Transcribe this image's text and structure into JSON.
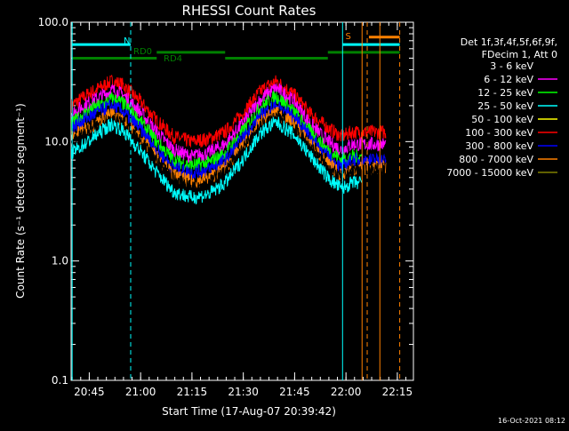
{
  "chart_data": {
    "type": "line",
    "title": "RHESSI Count Rates",
    "xlabel": "Start Time (17-Aug-07 20:39:42)",
    "ylabel": "Count Rate (s⁻¹ detector segment⁻¹)",
    "yscale": "log",
    "ylim": [
      0.1,
      100.0
    ],
    "xlim_minutes": [
      0,
      100
    ],
    "x_ticks": [
      {
        "label": "20:45",
        "t": 5.3
      },
      {
        "label": "21:00",
        "t": 20.3
      },
      {
        "label": "21:15",
        "t": 35.3
      },
      {
        "label": "21:30",
        "t": 50.3
      },
      {
        "label": "21:45",
        "t": 65.3
      },
      {
        "label": "22:00",
        "t": 80.3
      },
      {
        "label": "22:15",
        "t": 95.3
      }
    ],
    "y_ticks": [
      {
        "label": "0.1",
        "v": 0.1
      },
      {
        "label": "1.0",
        "v": 1.0
      },
      {
        "label": "10.0",
        "v": 10.0
      },
      {
        "label": "100.0",
        "v": 100.0
      }
    ],
    "legend": {
      "header": [
        "Det 1f,3f,4f,5f,6f,9f,",
        "FDecim 1, Att 0"
      ],
      "entries": [
        {
          "label": "3 - 6 keV",
          "color": "#000000"
        },
        {
          "label": "6 - 12 keV",
          "color": "#ff00ff"
        },
        {
          "label": "12 - 25 keV",
          "color": "#00ff00"
        },
        {
          "label": "25 - 50 keV",
          "color": "#00ffff"
        },
        {
          "label": "50 - 100 keV",
          "color": "#ffff00"
        },
        {
          "label": "100 - 300 keV",
          "color": "#ff0000"
        },
        {
          "label": "300 - 800 keV",
          "color": "#0000ff"
        },
        {
          "label": "800 - 7000 keV",
          "color": "#ff8000"
        },
        {
          "label": "7000 - 15000 keV",
          "color": "#808000"
        }
      ]
    },
    "series": [
      {
        "name": "100 - 300 keV",
        "color": "#ff0000",
        "x": [
          0,
          5,
          10,
          12,
          15,
          20,
          25,
          30,
          35,
          40,
          45,
          50,
          55,
          58,
          60,
          65,
          70,
          75,
          79,
          82,
          85,
          88,
          90,
          92
        ],
        "y": [
          20,
          25,
          30,
          32,
          30,
          22,
          15,
          11,
          10,
          10.5,
          12,
          17,
          26,
          30,
          32,
          25,
          17,
          13,
          11,
          12,
          12,
          12,
          12,
          12
        ]
      },
      {
        "name": "6 - 12 keV",
        "color": "#ff00ff",
        "x": [
          0,
          5,
          10,
          12,
          15,
          20,
          25,
          30,
          35,
          40,
          45,
          50,
          55,
          58,
          60,
          65,
          70,
          75,
          79,
          82,
          85,
          88,
          90,
          92
        ],
        "y": [
          17,
          21,
          25,
          27,
          25,
          18,
          12,
          8.5,
          7.5,
          8,
          9.5,
          14,
          22,
          26,
          28,
          22,
          14,
          10,
          8.5,
          9.5,
          9.5,
          9.5,
          9.5,
          9.5
        ]
      },
      {
        "name": "12 - 25 keV",
        "color": "#00ff00",
        "x": [
          0,
          5,
          10,
          12,
          15,
          20,
          25,
          30,
          35,
          40,
          45,
          50,
          55,
          58,
          60,
          65,
          70,
          75,
          79,
          82,
          85
        ],
        "y": [
          14,
          18,
          21,
          23,
          21,
          15,
          10,
          7,
          6.3,
          6.6,
          8,
          12,
          19,
          22,
          24,
          18,
          12,
          8.5,
          7,
          7.5,
          7.5
        ]
      },
      {
        "name": "300 - 800 keV",
        "color": "#0000ff",
        "x": [
          0,
          5,
          10,
          12,
          15,
          20,
          25,
          30,
          35,
          40,
          45,
          50,
          55,
          58,
          60,
          65,
          70,
          75,
          79,
          82,
          85,
          88,
          90,
          92
        ],
        "y": [
          13,
          16,
          19,
          20,
          18,
          13,
          8.5,
          6,
          5.5,
          5.8,
          7,
          10.5,
          16,
          19,
          20,
          16,
          11,
          7.5,
          6,
          7,
          7,
          7,
          7,
          7
        ]
      },
      {
        "name": "800 - 7000 keV",
        "color": "#ff8000",
        "x": [
          0,
          5,
          10,
          12,
          15,
          20,
          25,
          30,
          35,
          40,
          45,
          50,
          55,
          58,
          60,
          65,
          70,
          75,
          79,
          82,
          85,
          88,
          90,
          92
        ],
        "y": [
          11,
          13,
          16,
          17,
          15,
          11,
          7.5,
          5.2,
          4.6,
          4.9,
          6,
          9,
          14,
          16.5,
          17.5,
          14,
          9.5,
          6.5,
          5.2,
          6,
          6,
          6,
          6,
          6
        ]
      },
      {
        "name": "3 - 6 keV",
        "color": "#000000",
        "x": [
          0,
          5,
          10,
          12,
          15,
          20,
          25,
          30,
          35,
          40,
          45,
          50,
          55,
          58,
          60,
          65,
          70,
          75,
          79,
          82,
          85,
          88,
          90,
          92
        ],
        "y": [
          10,
          12,
          15,
          16,
          14,
          10,
          7,
          4.8,
          4.2,
          4.5,
          5.5,
          8.5,
          13,
          15,
          16,
          13,
          9,
          6,
          5,
          5.8,
          5.8,
          5.8,
          5.8,
          5.8
        ]
      },
      {
        "name": "25 - 50 keV",
        "color": "#00ffff",
        "x": [
          0,
          5,
          10,
          12,
          15,
          20,
          25,
          30,
          35,
          40,
          45,
          50,
          55,
          58,
          60,
          65,
          70,
          75,
          79,
          82,
          85
        ],
        "y": [
          8,
          10,
          13,
          14,
          12.5,
          8.5,
          5.5,
          3.8,
          3.4,
          3.6,
          4.5,
          7,
          11.5,
          13.5,
          14.5,
          11.5,
          7.5,
          5,
          4,
          4.5,
          4.5
        ]
      }
    ],
    "annotations": {
      "N": {
        "label": "N",
        "color": "#00ffff",
        "t": 17.4
      },
      "S": {
        "label": "S",
        "color": "#ff8000",
        "t": 83.0
      },
      "RD0": {
        "label": "RD0",
        "color": "#008000"
      },
      "RD4": {
        "label": "RD4",
        "color": "#008000"
      }
    },
    "vertical_lines": [
      {
        "t": 0.3,
        "color": "#00ffff",
        "style": "solid"
      },
      {
        "t": 17.4,
        "color": "#00ffff",
        "style": "dashed"
      },
      {
        "t": 79.3,
        "color": "#00ffff",
        "style": "solid"
      },
      {
        "t": 85.0,
        "color": "#ff8000",
        "style": "solid"
      },
      {
        "t": 86.5,
        "color": "#ff8000",
        "style": "dashed"
      },
      {
        "t": 90.2,
        "color": "#ff8000",
        "style": "solid"
      },
      {
        "t": 96.0,
        "color": "#ff8000",
        "style": "dashed"
      }
    ],
    "segments": [
      {
        "t0": 0.3,
        "t1": 17.4,
        "v": 65,
        "color": "#00ffff"
      },
      {
        "t0": 79.3,
        "t1": 96.0,
        "v": 65,
        "color": "#00ffff"
      },
      {
        "t0": 87.0,
        "t1": 96.0,
        "v": 75,
        "color": "#ff8000"
      },
      {
        "t0": 0.3,
        "t1": 25.0,
        "v": 50,
        "color": "#008000"
      },
      {
        "t0": 25.0,
        "t1": 45.0,
        "v": 56,
        "color": "#008000"
      },
      {
        "t0": 45.0,
        "t1": 75.0,
        "v": 50,
        "color": "#008000"
      },
      {
        "t0": 75.0,
        "t1": 96.0,
        "v": 56,
        "color": "#008000"
      }
    ]
  },
  "timestamp": "16-Oct-2021 08:12"
}
